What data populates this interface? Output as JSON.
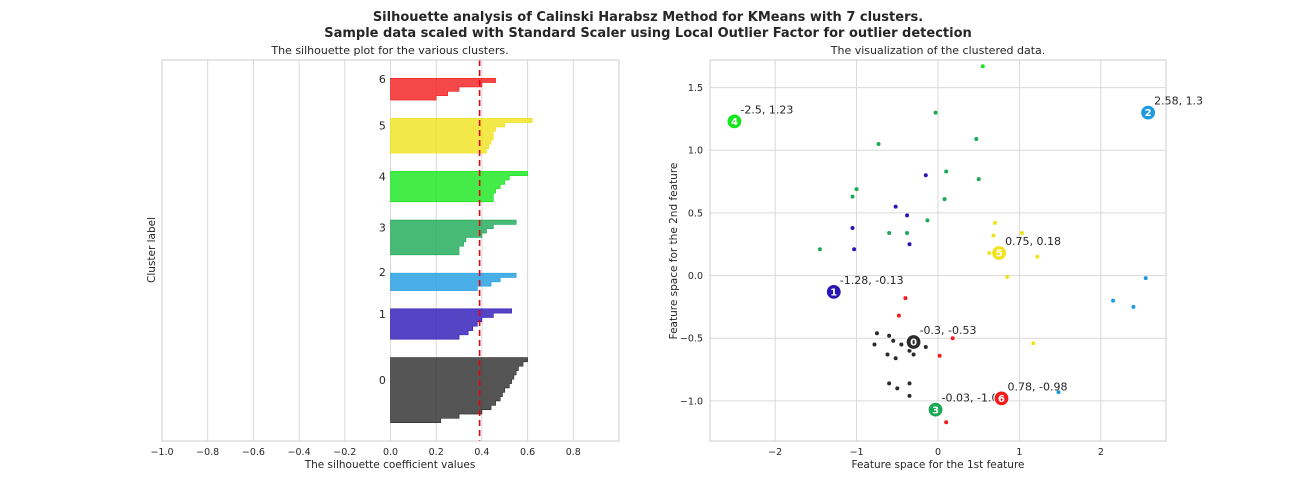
{
  "title": {
    "line1": "Silhouette analysis of Calinski Harabsz Method for KMeans with 7 clusters.",
    "line2": "Sample data scaled with Standard Scaler using Local Outlier Factor for outlier detection"
  },
  "colors": {
    "c0": "#2b2b2b",
    "c1": "#2a15b5",
    "c2": "#1c9be0",
    "c3": "#1aa955",
    "c4": "#17e61c",
    "c5": "#efe31c",
    "c6": "#f21c1c",
    "threshold": "#e8000b",
    "grid": "#d9d9d9",
    "spine": "#cccccc"
  },
  "chart_data": [
    {
      "type": "area",
      "title": "The silhouette plot for the various clusters.",
      "xlabel": "The silhouette coefficient values",
      "ylabel": "Cluster label",
      "xlim": [
        -1.0,
        1.0
      ],
      "xticks": [
        -1.0,
        -0.8,
        -0.6,
        -0.4,
        -0.2,
        0,
        0.2,
        0.4,
        0.6,
        0.8
      ],
      "xtick_labels": [
        "−1.0",
        "−0.8",
        "−0.6",
        "−0.4",
        "−0.2",
        "0.0",
        "0.2",
        "0.4",
        "0.6",
        "0.8"
      ],
      "grid": "vertical",
      "average_silhouette": 0.39,
      "clusters": [
        {
          "label": "0",
          "values": [
            0.6,
            0.58,
            0.56,
            0.55,
            0.54,
            0.53,
            0.52,
            0.5,
            0.49,
            0.48,
            0.46,
            0.44,
            0.4,
            0.3,
            0.22
          ]
        },
        {
          "label": "1",
          "values": [
            0.53,
            0.45,
            0.4,
            0.38,
            0.36,
            0.34,
            0.3
          ]
        },
        {
          "label": "2",
          "values": [
            0.55,
            0.48,
            0.44,
            0.38
          ]
        },
        {
          "label": "3",
          "values": [
            0.55,
            0.45,
            0.42,
            0.4,
            0.33,
            0.32,
            0.3,
            0.3
          ]
        },
        {
          "label": "4",
          "values": [
            0.6,
            0.52,
            0.5,
            0.48,
            0.46,
            0.45,
            0.45
          ]
        },
        {
          "label": "5",
          "values": [
            0.62,
            0.5,
            0.46,
            0.45,
            0.45,
            0.44,
            0.43,
            0.42
          ]
        },
        {
          "label": "6",
          "values": [
            0.46,
            0.4,
            0.3,
            0.25,
            0.2
          ]
        }
      ]
    },
    {
      "type": "scatter",
      "title": "The visualization of the clustered data.",
      "xlabel": "Feature space for the 1st feature",
      "ylabel": "Feature space for the 2nd feature",
      "xlim": [
        -2.8,
        2.8
      ],
      "ylim": [
        -1.32,
        1.72
      ],
      "xticks": [
        -2,
        -1,
        0,
        1,
        2
      ],
      "xtick_labels": [
        "−2",
        "−1",
        "0",
        "1",
        "2"
      ],
      "yticks": [
        -1.0,
        -0.5,
        0.0,
        0.5,
        1.0,
        1.5
      ],
      "ytick_labels": [
        "−1.0",
        "−0.5",
        "0.0",
        "0.5",
        "1.0",
        "1.5"
      ],
      "grid": true,
      "points": [
        {
          "c": 0,
          "x": -0.75,
          "y": -0.46
        },
        {
          "c": 0,
          "x": -0.6,
          "y": -0.48
        },
        {
          "c": 0,
          "x": -0.55,
          "y": -0.52
        },
        {
          "c": 0,
          "x": -0.78,
          "y": -0.55
        },
        {
          "c": 0,
          "x": -0.45,
          "y": -0.55
        },
        {
          "c": 0,
          "x": -0.35,
          "y": -0.6
        },
        {
          "c": 0,
          "x": -0.62,
          "y": -0.63
        },
        {
          "c": 0,
          "x": -0.52,
          "y": -0.66
        },
        {
          "c": 0,
          "x": -0.3,
          "y": -0.63
        },
        {
          "c": 0,
          "x": -0.15,
          "y": -0.57
        },
        {
          "c": 0,
          "x": -0.6,
          "y": -0.86
        },
        {
          "c": 0,
          "x": -0.5,
          "y": -0.9
        },
        {
          "c": 0,
          "x": -0.35,
          "y": -0.86
        },
        {
          "c": 0,
          "x": -0.35,
          "y": -0.96
        },
        {
          "c": 1,
          "x": -0.15,
          "y": 0.8
        },
        {
          "c": 1,
          "x": -0.52,
          "y": 0.55
        },
        {
          "c": 1,
          "x": -0.38,
          "y": 0.48
        },
        {
          "c": 1,
          "x": -1.05,
          "y": 0.38
        },
        {
          "c": 1,
          "x": -0.35,
          "y": 0.25
        },
        {
          "c": 1,
          "x": -1.03,
          "y": 0.21
        },
        {
          "c": 2,
          "x": 2.55,
          "y": -0.02
        },
        {
          "c": 2,
          "x": 2.15,
          "y": -0.2
        },
        {
          "c": 2,
          "x": 2.4,
          "y": -0.25
        },
        {
          "c": 2,
          "x": 1.48,
          "y": -0.93
        },
        {
          "c": 3,
          "x": -0.73,
          "y": 1.05
        },
        {
          "c": 3,
          "x": -0.03,
          "y": 1.3
        },
        {
          "c": 3,
          "x": 0.47,
          "y": 1.09
        },
        {
          "c": 3,
          "x": 0.1,
          "y": 0.83
        },
        {
          "c": 3,
          "x": 0.5,
          "y": 0.77
        },
        {
          "c": 3,
          "x": -1.0,
          "y": 0.69
        },
        {
          "c": 3,
          "x": -1.05,
          "y": 0.63
        },
        {
          "c": 3,
          "x": 0.08,
          "y": 0.61
        },
        {
          "c": 3,
          "x": -0.13,
          "y": 0.44
        },
        {
          "c": 3,
          "x": -0.6,
          "y": 0.34
        },
        {
          "c": 3,
          "x": -0.38,
          "y": 0.34
        },
        {
          "c": 3,
          "x": -1.45,
          "y": 0.21
        },
        {
          "c": 4,
          "x": 0.55,
          "y": 1.67
        },
        {
          "c": 5,
          "x": 0.7,
          "y": 0.42
        },
        {
          "c": 5,
          "x": 0.68,
          "y": 0.32
        },
        {
          "c": 5,
          "x": 1.03,
          "y": 0.34
        },
        {
          "c": 5,
          "x": 0.63,
          "y": 0.18
        },
        {
          "c": 5,
          "x": 1.22,
          "y": 0.15
        },
        {
          "c": 5,
          "x": 0.85,
          "y": -0.01
        },
        {
          "c": 5,
          "x": 1.17,
          "y": -0.54
        },
        {
          "c": 6,
          "x": -0.4,
          "y": -0.18
        },
        {
          "c": 6,
          "x": -0.48,
          "y": -0.32
        },
        {
          "c": 6,
          "x": 0.18,
          "y": -0.5
        },
        {
          "c": 6,
          "x": 0.02,
          "y": -0.64
        },
        {
          "c": 6,
          "x": 0.1,
          "y": -1.17
        }
      ],
      "centers": [
        {
          "label": "0",
          "c": 0,
          "x": -0.3,
          "y": -0.53,
          "text": "-0.3, -0.53"
        },
        {
          "label": "1",
          "c": 1,
          "x": -1.28,
          "y": -0.13,
          "text": "-1.28, -0.13"
        },
        {
          "label": "2",
          "c": 2,
          "x": 2.58,
          "y": 1.3,
          "text": "2.58, 1.3"
        },
        {
          "label": "3",
          "c": 3,
          "x": -0.03,
          "y": -1.07,
          "text": "-0.03, -1.07"
        },
        {
          "label": "4",
          "c": 4,
          "x": -2.5,
          "y": 1.23,
          "text": "-2.5, 1.23"
        },
        {
          "label": "5",
          "c": 5,
          "x": 0.75,
          "y": 0.18,
          "text": "0.75, 0.18"
        },
        {
          "label": "6",
          "c": 6,
          "x": 0.78,
          "y": -0.98,
          "text": "0.78, -0.98"
        }
      ]
    }
  ]
}
